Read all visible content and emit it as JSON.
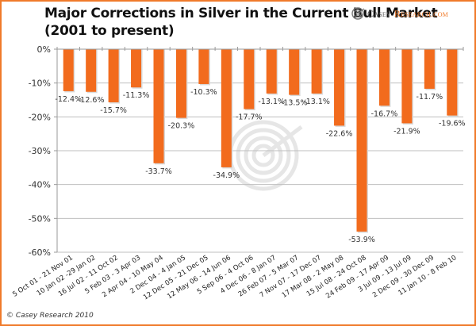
{
  "header": {
    "title_line1": "Major Corrections in Silver in the Current Bull Market",
    "title_line2": "(2001 to present)",
    "logo_text_casey": "Casey",
    "logo_text_research": "Research.com"
  },
  "footer": {
    "copyright": "© Casey Research 2010"
  },
  "colors": {
    "bar": "#f26b1d",
    "frame": "#f07a2a",
    "gridline": "#bfbfbf",
    "watermark": "#e6e6e6"
  },
  "chart_data": {
    "type": "bar",
    "title": "Major Corrections in Silver in the Current Bull Market (2001 to present)",
    "xlabel": "",
    "ylabel": "",
    "ylim": [
      -60,
      0
    ],
    "yticks": [
      0,
      -10,
      -20,
      -30,
      -40,
      -50,
      -60
    ],
    "ytick_labels": [
      "0%",
      "-10%",
      "-20%",
      "-30%",
      "-40%",
      "-50%",
      "-60%"
    ],
    "grid": true,
    "legend": "none",
    "categories": [
      "5 Oct 01 - 21 Nov 01",
      "10 Jan 02 -29 Jan 02",
      "16 Jul 02 - 11 Oct 02",
      "5 Feb 03 - 3 Apr 03",
      "2 Apr 04 - 10 May 04",
      "2 Dec 04 - 4 Jan 05",
      "12 Dec 05 - 21 Dec 05",
      "12 May 06 - 14 Jun 06",
      "5 Sep 06 - 4 Oct 06",
      "4 Dec 06 - 8 Jan 07",
      "26 Feb 07 - 5 Mar 07",
      "7 Nov 07 - 17 Dec 07",
      "17 Mar 08 - 2 May 08",
      "15 Jul 08 - 24 Oct 08",
      "24 Feb 09 - 17 Apr 09",
      "3 Jul 09 - 13 Jul 09",
      "2 Dec 09 - 30 Dec 09",
      "11 Jan 10 - 8 Feb 10"
    ],
    "values": [
      -12.4,
      -12.6,
      -15.7,
      -11.3,
      -33.7,
      -20.3,
      -10.3,
      -34.9,
      -17.7,
      -13.1,
      -13.5,
      -13.1,
      -22.6,
      -53.9,
      -16.7,
      -21.9,
      -11.7,
      -19.6
    ],
    "data_labels": [
      "-12.4%",
      "-12.6%",
      "-15.7%",
      "-11.3%",
      "-33.7%",
      "-20.3%",
      "-10.3%",
      "-34.9%",
      "-17.7%",
      "-13.1%",
      "-13.5%",
      "-13.1%",
      "-22.6%",
      "-53.9%",
      "-16.7%",
      "-21.9%",
      "-11.7%",
      "-19.6%"
    ]
  }
}
